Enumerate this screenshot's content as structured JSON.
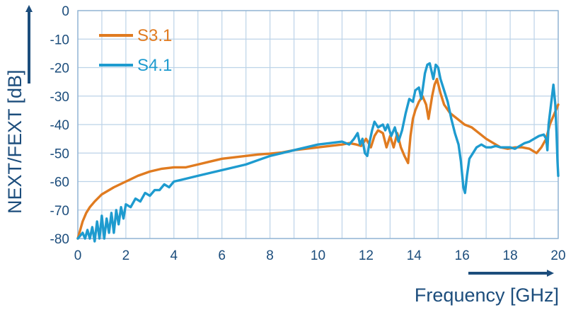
{
  "chart_data": {
    "type": "line",
    "xlabel": "Frequency [GHz]",
    "ylabel": "NEXT/FEXT [dB]",
    "xlim": [
      0,
      20
    ],
    "ylim": [
      -80,
      0
    ],
    "xticks": [
      0,
      2,
      4,
      6,
      8,
      10,
      12,
      14,
      16,
      18,
      20
    ],
    "yticks": [
      0,
      -10,
      -20,
      -30,
      -40,
      -50,
      -60,
      -70,
      -80
    ],
    "grid": true,
    "legend_position": "top-left",
    "series": [
      {
        "name": "S3.1",
        "color": "#e07b20",
        "points": [
          [
            0,
            -80
          ],
          [
            0.1,
            -77
          ],
          [
            0.2,
            -74
          ],
          [
            0.35,
            -71
          ],
          [
            0.5,
            -69
          ],
          [
            0.7,
            -67
          ],
          [
            1.0,
            -64.5
          ],
          [
            1.5,
            -62
          ],
          [
            2.0,
            -60
          ],
          [
            2.5,
            -58
          ],
          [
            3.0,
            -56.5
          ],
          [
            3.5,
            -55.5
          ],
          [
            4.0,
            -55
          ],
          [
            4.5,
            -55
          ],
          [
            5.0,
            -54
          ],
          [
            5.5,
            -53
          ],
          [
            6.0,
            -52
          ],
          [
            6.5,
            -51.5
          ],
          [
            7.0,
            -51
          ],
          [
            7.5,
            -50.5
          ],
          [
            8.0,
            -50.2
          ],
          [
            8.5,
            -49.8
          ],
          [
            9.0,
            -49
          ],
          [
            9.5,
            -48.5
          ],
          [
            10.0,
            -48
          ],
          [
            10.5,
            -47.5
          ],
          [
            11.0,
            -47
          ],
          [
            11.3,
            -46.5
          ],
          [
            11.6,
            -47
          ],
          [
            11.8,
            -47.5
          ],
          [
            12.0,
            -45
          ],
          [
            12.2,
            -48
          ],
          [
            12.35,
            -44
          ],
          [
            12.5,
            -42
          ],
          [
            12.7,
            -43
          ],
          [
            12.85,
            -48
          ],
          [
            13.0,
            -44
          ],
          [
            13.15,
            -48
          ],
          [
            13.3,
            -43
          ],
          [
            13.45,
            -48
          ],
          [
            13.6,
            -51
          ],
          [
            13.75,
            -53.5
          ],
          [
            13.85,
            -44
          ],
          [
            13.95,
            -38
          ],
          [
            14.05,
            -35
          ],
          [
            14.2,
            -32
          ],
          [
            14.35,
            -30
          ],
          [
            14.5,
            -33
          ],
          [
            14.6,
            -38
          ],
          [
            14.75,
            -30
          ],
          [
            14.85,
            -26
          ],
          [
            14.95,
            -24
          ],
          [
            15.1,
            -29
          ],
          [
            15.25,
            -33
          ],
          [
            15.5,
            -36
          ],
          [
            15.8,
            -38
          ],
          [
            16.1,
            -40
          ],
          [
            16.4,
            -41
          ],
          [
            16.7,
            -43
          ],
          [
            17.0,
            -45
          ],
          [
            17.3,
            -46.5
          ],
          [
            17.6,
            -48
          ],
          [
            17.9,
            -48.5
          ],
          [
            18.2,
            -48
          ],
          [
            18.5,
            -48
          ],
          [
            18.8,
            -48.5
          ],
          [
            19.1,
            -50
          ],
          [
            19.3,
            -48
          ],
          [
            19.5,
            -45
          ],
          [
            19.65,
            -40
          ],
          [
            19.75,
            -38
          ],
          [
            19.85,
            -36
          ],
          [
            19.95,
            -34
          ],
          [
            20.0,
            -33
          ]
        ]
      },
      {
        "name": "S4.1",
        "color": "#1e9bcf",
        "points": [
          [
            0,
            -80
          ],
          [
            0.1,
            -79
          ],
          [
            0.2,
            -78
          ],
          [
            0.3,
            -80
          ],
          [
            0.4,
            -77
          ],
          [
            0.5,
            -80
          ],
          [
            0.6,
            -76
          ],
          [
            0.7,
            -81
          ],
          [
            0.8,
            -74
          ],
          [
            0.9,
            -80
          ],
          [
            1.0,
            -72
          ],
          [
            1.1,
            -80
          ],
          [
            1.2,
            -73
          ],
          [
            1.3,
            -78
          ],
          [
            1.4,
            -71
          ],
          [
            1.5,
            -78
          ],
          [
            1.6,
            -70
          ],
          [
            1.7,
            -75
          ],
          [
            1.8,
            -69
          ],
          [
            1.9,
            -73
          ],
          [
            2.0,
            -68
          ],
          [
            2.2,
            -69
          ],
          [
            2.4,
            -66
          ],
          [
            2.6,
            -67
          ],
          [
            2.8,
            -64
          ],
          [
            3.0,
            -65
          ],
          [
            3.2,
            -63
          ],
          [
            3.4,
            -63
          ],
          [
            3.6,
            -61
          ],
          [
            3.8,
            -62
          ],
          [
            4.0,
            -60
          ],
          [
            4.5,
            -59
          ],
          [
            5.0,
            -58
          ],
          [
            5.5,
            -57
          ],
          [
            6.0,
            -56
          ],
          [
            6.5,
            -55
          ],
          [
            7.0,
            -54
          ],
          [
            7.5,
            -52.5
          ],
          [
            8.0,
            -51
          ],
          [
            8.5,
            -50
          ],
          [
            9.0,
            -49
          ],
          [
            9.5,
            -48
          ],
          [
            10.0,
            -47
          ],
          [
            10.5,
            -46.5
          ],
          [
            11.0,
            -46
          ],
          [
            11.3,
            -47
          ],
          [
            11.5,
            -45
          ],
          [
            11.65,
            -43
          ],
          [
            11.75,
            -47
          ],
          [
            11.85,
            -45
          ],
          [
            11.95,
            -50
          ],
          [
            12.05,
            -51
          ],
          [
            12.15,
            -46
          ],
          [
            12.25,
            -42
          ],
          [
            12.35,
            -39
          ],
          [
            12.5,
            -41
          ],
          [
            12.7,
            -40
          ],
          [
            12.8,
            -42
          ],
          [
            12.9,
            -40
          ],
          [
            13.05,
            -44
          ],
          [
            13.2,
            -41
          ],
          [
            13.35,
            -46
          ],
          [
            13.5,
            -42
          ],
          [
            13.65,
            -36
          ],
          [
            13.8,
            -31
          ],
          [
            13.95,
            -32
          ],
          [
            14.05,
            -28
          ],
          [
            14.2,
            -27
          ],
          [
            14.3,
            -31
          ],
          [
            14.45,
            -22
          ],
          [
            14.55,
            -19
          ],
          [
            14.65,
            -18.5
          ],
          [
            14.8,
            -24
          ],
          [
            14.9,
            -19
          ],
          [
            15.0,
            -20
          ],
          [
            15.1,
            -24
          ],
          [
            15.25,
            -28
          ],
          [
            15.4,
            -32
          ],
          [
            15.55,
            -38
          ],
          [
            15.7,
            -43
          ],
          [
            15.85,
            -47
          ],
          [
            15.95,
            -53
          ],
          [
            16.05,
            -62
          ],
          [
            16.12,
            -64
          ],
          [
            16.2,
            -58
          ],
          [
            16.3,
            -52
          ],
          [
            16.45,
            -50
          ],
          [
            16.6,
            -48
          ],
          [
            16.8,
            -47
          ],
          [
            17.0,
            -48
          ],
          [
            17.2,
            -48
          ],
          [
            17.4,
            -47.5
          ],
          [
            17.6,
            -48
          ],
          [
            17.8,
            -48
          ],
          [
            18.0,
            -48
          ],
          [
            18.2,
            -48.5
          ],
          [
            18.4,
            -47.5
          ],
          [
            18.6,
            -46.5
          ],
          [
            18.8,
            -46
          ],
          [
            19.0,
            -45
          ],
          [
            19.2,
            -44
          ],
          [
            19.4,
            -43.5
          ],
          [
            19.5,
            -45
          ],
          [
            19.55,
            -49
          ],
          [
            19.6,
            -40
          ],
          [
            19.7,
            -33
          ],
          [
            19.8,
            -26
          ],
          [
            19.88,
            -33
          ],
          [
            19.93,
            -43
          ],
          [
            19.97,
            -53
          ],
          [
            20.0,
            -58
          ]
        ]
      }
    ]
  }
}
